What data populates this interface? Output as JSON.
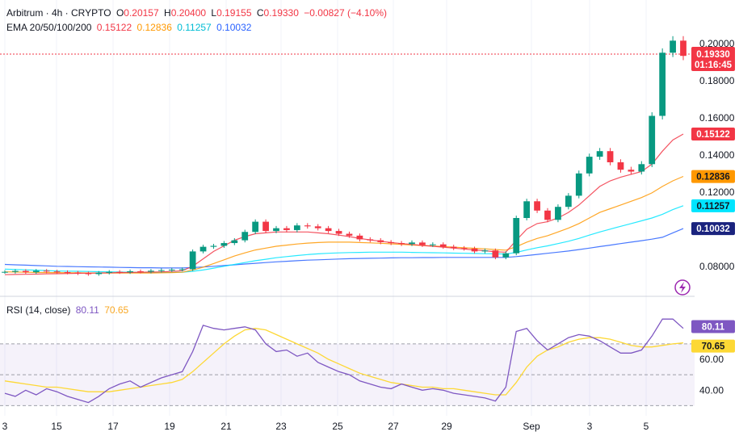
{
  "legend": {
    "symbol": "Arbitrum · 4h · CRYPTO",
    "o_label": "O",
    "o_value": "0.20157",
    "h_label": "H",
    "h_value": "0.20400",
    "l_label": "L",
    "l_value": "0.19155",
    "c_label": "C",
    "c_value": "0.19330",
    "change": "−0.00827 (−4.10%)",
    "ema_label": "EMA 20/50/100/200",
    "rsi_label": "RSI (14, close)"
  },
  "colors": {
    "up": "#089981",
    "down": "#f23645",
    "ema20": "#f23645",
    "ema50": "#ff9800",
    "ema100": "#00e5ff",
    "ema200": "#2962ff",
    "rsi": "#7e57c2",
    "rsi_ma": "#fdd835"
  },
  "chart_data": [
    {
      "type": "candlestick",
      "x_labels": [
        "3",
        "15",
        "17",
        "19",
        "21",
        "23",
        "25",
        "27",
        "29",
        "Sep",
        "3",
        "5"
      ],
      "y_ticks": [
        "0.08000",
        "0.10000",
        "0.12000",
        "0.14000",
        "0.16000",
        "0.18000",
        "0.20000"
      ],
      "ylim": [
        0.066,
        0.206
      ],
      "last_price": "0.19330",
      "countdown": "01:16:45",
      "ema_values": [
        "0.15122",
        "0.12836",
        "0.11257",
        "0.10032"
      ],
      "close_series": [
        0.077,
        0.0775,
        0.0768,
        0.0776,
        0.0772,
        0.0769,
        0.0766,
        0.0762,
        0.0758,
        0.0765,
        0.077,
        0.0768,
        0.0773,
        0.0771,
        0.0776,
        0.0779,
        0.0782,
        0.0784,
        0.088,
        0.0905,
        0.091,
        0.0925,
        0.094,
        0.0985,
        0.104,
        0.099,
        0.1005,
        0.0995,
        0.102,
        0.1015,
        0.1005,
        0.099,
        0.0975,
        0.0965,
        0.0945,
        0.094,
        0.093,
        0.0925,
        0.092,
        0.0928,
        0.0915,
        0.0918,
        0.0905,
        0.0898,
        0.0895,
        0.088,
        0.0885,
        0.0848,
        0.087,
        0.106,
        0.115,
        0.11,
        0.105,
        0.112,
        0.118,
        0.13,
        0.139,
        0.142,
        0.136,
        0.132,
        0.131,
        0.135,
        0.161,
        0.195,
        0.2015,
        0.1933
      ],
      "ema20": [
        0.0755,
        0.0756,
        0.0757,
        0.0758,
        0.0759,
        0.076,
        0.0761,
        0.0762,
        0.0763,
        0.0764,
        0.0765,
        0.0766,
        0.0767,
        0.0768,
        0.0769,
        0.077,
        0.0772,
        0.0776,
        0.08,
        0.084,
        0.088,
        0.091,
        0.094,
        0.096,
        0.0975,
        0.098,
        0.0985,
        0.0985,
        0.0985,
        0.0985,
        0.098,
        0.0975,
        0.0968,
        0.096,
        0.095,
        0.0942,
        0.0935,
        0.0928,
        0.0922,
        0.0918,
        0.0912,
        0.0908,
        0.0903,
        0.0898,
        0.0893,
        0.0888,
        0.0884,
        0.0878,
        0.0876,
        0.094,
        0.1,
        0.103,
        0.104,
        0.106,
        0.109,
        0.113,
        0.118,
        0.123,
        0.126,
        0.128,
        0.1295,
        0.131,
        0.135,
        0.142,
        0.148,
        0.1512
      ],
      "ema50": [
        0.077,
        0.0769,
        0.0768,
        0.0767,
        0.0766,
        0.0766,
        0.0765,
        0.0765,
        0.0764,
        0.0764,
        0.0764,
        0.0764,
        0.0764,
        0.0764,
        0.0764,
        0.0765,
        0.0766,
        0.0768,
        0.078,
        0.0795,
        0.0815,
        0.0835,
        0.0855,
        0.0872,
        0.0888,
        0.0898,
        0.0908,
        0.0914,
        0.092,
        0.0925,
        0.0928,
        0.093,
        0.093,
        0.093,
        0.0928,
        0.0926,
        0.0924,
        0.0921,
        0.0918,
        0.0915,
        0.0912,
        0.0909,
        0.0906,
        0.0903,
        0.09,
        0.0897,
        0.0894,
        0.089,
        0.0887,
        0.0905,
        0.093,
        0.095,
        0.0965,
        0.0985,
        0.1005,
        0.103,
        0.106,
        0.109,
        0.111,
        0.113,
        0.115,
        0.117,
        0.1195,
        0.123,
        0.126,
        0.1284
      ],
      "ema100": [
        0.0785,
        0.0783,
        0.0781,
        0.0779,
        0.0777,
        0.0775,
        0.0774,
        0.0773,
        0.0772,
        0.0771,
        0.077,
        0.0769,
        0.0768,
        0.0768,
        0.0767,
        0.0767,
        0.0767,
        0.0768,
        0.0773,
        0.078,
        0.079,
        0.08,
        0.081,
        0.082,
        0.083,
        0.0838,
        0.0846,
        0.0852,
        0.0858,
        0.0863,
        0.0867,
        0.087,
        0.0872,
        0.0874,
        0.0875,
        0.0876,
        0.0876,
        0.0876,
        0.0876,
        0.0875,
        0.0874,
        0.0873,
        0.0872,
        0.0871,
        0.087,
        0.0869,
        0.0868,
        0.0867,
        0.0866,
        0.0875,
        0.0888,
        0.09,
        0.091,
        0.0922,
        0.0935,
        0.095,
        0.0968,
        0.0985,
        0.1,
        0.1015,
        0.103,
        0.1045,
        0.106,
        0.108,
        0.1105,
        0.1126
      ],
      "ema200": [
        0.081,
        0.0808,
        0.0806,
        0.0804,
        0.0802,
        0.08,
        0.0799,
        0.0798,
        0.0797,
        0.0796,
        0.0795,
        0.0794,
        0.0793,
        0.0792,
        0.0792,
        0.0791,
        0.0791,
        0.0791,
        0.0793,
        0.0796,
        0.08,
        0.0804,
        0.0808,
        0.0812,
        0.0816,
        0.082,
        0.0824,
        0.0827,
        0.083,
        0.0833,
        0.0835,
        0.0837,
        0.0839,
        0.0841,
        0.0842,
        0.0843,
        0.0844,
        0.0845,
        0.0846,
        0.0846,
        0.0847,
        0.0847,
        0.0848,
        0.0848,
        0.0848,
        0.0848,
        0.0848,
        0.0848,
        0.0848,
        0.0852,
        0.0858,
        0.0864,
        0.087,
        0.0876,
        0.0882,
        0.089,
        0.0898,
        0.0906,
        0.0914,
        0.0922,
        0.093,
        0.0938,
        0.0946,
        0.0956,
        0.098,
        0.1003
      ]
    },
    {
      "type": "line",
      "title": "RSI (14, close)",
      "y_ticks": [
        "40.00",
        "60.00"
      ],
      "ylim": [
        25,
        95
      ],
      "bands": [
        30,
        50,
        70
      ],
      "rsi_value": "80.11",
      "rsi_ma_value": "70.65",
      "rsi": [
        38,
        36,
        40,
        37,
        41,
        39,
        36,
        34,
        32,
        36,
        41,
        44,
        46,
        42,
        45,
        48,
        50,
        52,
        65,
        82,
        80,
        79,
        80,
        81,
        79,
        70,
        65,
        66,
        62,
        64,
        58,
        55,
        52,
        50,
        46,
        44,
        42,
        41,
        44,
        42,
        40,
        41,
        40,
        38,
        37,
        36,
        35,
        33,
        42,
        78,
        80,
        72,
        66,
        70,
        74,
        76,
        75,
        72,
        68,
        64,
        64,
        66,
        75,
        86,
        86,
        80
      ],
      "rsi_ma": [
        46,
        45,
        44,
        43,
        42,
        42,
        41,
        40,
        39,
        39,
        39,
        40,
        41,
        42,
        43,
        44,
        45,
        47,
        52,
        58,
        64,
        70,
        75,
        79,
        80,
        79,
        76,
        73,
        70,
        67,
        64,
        60,
        57,
        54,
        51,
        49,
        47,
        45,
        44,
        43,
        42,
        42,
        41,
        41,
        40,
        39,
        38,
        37,
        37,
        45,
        55,
        62,
        66,
        68,
        71,
        73,
        74,
        74,
        73,
        71,
        69,
        68,
        68,
        69,
        70,
        70.6
      ]
    }
  ]
}
